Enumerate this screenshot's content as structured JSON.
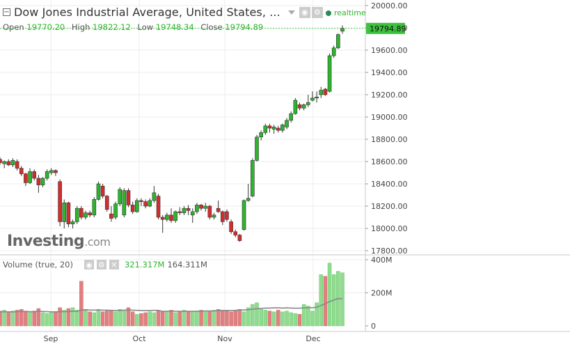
{
  "header": {
    "title": "Dow Jones Industrial Average, United States, ...",
    "collapse_icon": "minus-box-icon",
    "realtime_label": "realtime",
    "ohlc": {
      "open_label": "Open",
      "open": "19770.20",
      "high_label": "High",
      "high": "19822.12",
      "low_label": "Low",
      "low": "19748.34",
      "close_label": "Close",
      "close": "19794.89"
    }
  },
  "price_axis": {
    "current_price": "19794.89",
    "ticks": [
      "20000.00",
      "19800.00",
      "19600.00",
      "19400.00",
      "19200.00",
      "19000.00",
      "18800.00",
      "18600.00",
      "18400.00",
      "18200.00",
      "18000.00",
      "17800.00"
    ]
  },
  "volume_panel": {
    "title": "Volume (true, 20)",
    "value1": "321.317M",
    "value2": "164.311M",
    "ticks": [
      "400M",
      "200M",
      "0"
    ]
  },
  "time_axis": {
    "labels": [
      "Sep",
      "Oct",
      "Nov",
      "Dec"
    ]
  },
  "logo": {
    "brand": "Investing",
    "suffix": ".com"
  },
  "colors": {
    "up": "#2db52d",
    "down": "#d22e2e",
    "vol_up": "#8fdc8f",
    "vol_down": "#e08080",
    "grid": "#ececec",
    "ma": "#888888"
  },
  "chart_data": {
    "type": "candlestick",
    "title": "Dow Jones Industrial Average, United States",
    "price_range": [
      17800,
      20000
    ],
    "volume_range": [
      0,
      400
    ],
    "volume_unit": "M",
    "candles": [
      {
        "o": 18620,
        "h": 18640,
        "l": 18570,
        "c": 18590,
        "v": 90
      },
      {
        "o": 18580,
        "h": 18610,
        "l": 18540,
        "c": 18600,
        "v": 95
      },
      {
        "o": 18600,
        "h": 18620,
        "l": 18560,
        "c": 18570,
        "v": 85
      },
      {
        "o": 18570,
        "h": 18630,
        "l": 18550,
        "c": 18610,
        "v": 90
      },
      {
        "o": 18600,
        "h": 18620,
        "l": 18520,
        "c": 18540,
        "v": 95
      },
      {
        "o": 18540,
        "h": 18560,
        "l": 18470,
        "c": 18490,
        "v": 100
      },
      {
        "o": 18490,
        "h": 18500,
        "l": 18380,
        "c": 18410,
        "v": 90
      },
      {
        "o": 18410,
        "h": 18540,
        "l": 18400,
        "c": 18510,
        "v": 85
      },
      {
        "o": 18510,
        "h": 18530,
        "l": 18430,
        "c": 18450,
        "v": 90
      },
      {
        "o": 18450,
        "h": 18480,
        "l": 18320,
        "c": 18390,
        "v": 105
      },
      {
        "o": 18390,
        "h": 18460,
        "l": 18370,
        "c": 18450,
        "v": 80
      },
      {
        "o": 18450,
        "h": 18530,
        "l": 18430,
        "c": 18510,
        "v": 75
      },
      {
        "o": 18500,
        "h": 18540,
        "l": 18480,
        "c": 18520,
        "v": 80
      },
      {
        "o": 18520,
        "h": 18530,
        "l": 18470,
        "c": 18500,
        "v": 85
      },
      {
        "o": 18420,
        "h": 18440,
        "l": 18020,
        "c": 18060,
        "v": 110
      },
      {
        "o": 18060,
        "h": 18260,
        "l": 18000,
        "c": 18230,
        "v": 95
      },
      {
        "o": 18230,
        "h": 18240,
        "l": 18010,
        "c": 18040,
        "v": 105
      },
      {
        "o": 18040,
        "h": 18080,
        "l": 18000,
        "c": 18060,
        "v": 110
      },
      {
        "o": 18060,
        "h": 18200,
        "l": 18040,
        "c": 18180,
        "v": 95
      },
      {
        "o": 18180,
        "h": 18200,
        "l": 18080,
        "c": 18100,
        "v": 270
      },
      {
        "o": 18100,
        "h": 18160,
        "l": 18080,
        "c": 18140,
        "v": 100
      },
      {
        "o": 18140,
        "h": 18160,
        "l": 18100,
        "c": 18120,
        "v": 85
      },
      {
        "o": 18120,
        "h": 18280,
        "l": 18100,
        "c": 18260,
        "v": 80
      },
      {
        "o": 18260,
        "h": 18420,
        "l": 18250,
        "c": 18400,
        "v": 100
      },
      {
        "o": 18380,
        "h": 18400,
        "l": 18270,
        "c": 18290,
        "v": 85
      },
      {
        "o": 18290,
        "h": 18300,
        "l": 18150,
        "c": 18170,
        "v": 90
      },
      {
        "o": 18130,
        "h": 18200,
        "l": 18060,
        "c": 18090,
        "v": 95
      },
      {
        "o": 18100,
        "h": 18240,
        "l": 18080,
        "c": 18220,
        "v": 85
      },
      {
        "o": 18220,
        "h": 18370,
        "l": 18200,
        "c": 18350,
        "v": 100
      },
      {
        "o": 18120,
        "h": 18360,
        "l": 18100,
        "c": 18340,
        "v": 95
      },
      {
        "o": 18340,
        "h": 18360,
        "l": 18190,
        "c": 18210,
        "v": 110
      },
      {
        "o": 18210,
        "h": 18240,
        "l": 18130,
        "c": 18150,
        "v": 85
      },
      {
        "o": 18150,
        "h": 18270,
        "l": 18140,
        "c": 18250,
        "v": 70
      },
      {
        "o": 18250,
        "h": 18270,
        "l": 18200,
        "c": 18240,
        "v": 75
      },
      {
        "o": 18240,
        "h": 18260,
        "l": 18180,
        "c": 18200,
        "v": 80
      },
      {
        "o": 18200,
        "h": 18270,
        "l": 18190,
        "c": 18250,
        "v": 85
      },
      {
        "o": 18250,
        "h": 18380,
        "l": 18230,
        "c": 18320,
        "v": 80
      },
      {
        "o": 18290,
        "h": 18310,
        "l": 18080,
        "c": 18100,
        "v": 90
      },
      {
        "o": 18100,
        "h": 18120,
        "l": 17960,
        "c": 18080,
        "v": 85
      },
      {
        "o": 18080,
        "h": 18140,
        "l": 18060,
        "c": 18120,
        "v": 90
      },
      {
        "o": 18120,
        "h": 18180,
        "l": 18050,
        "c": 18070,
        "v": 95
      },
      {
        "o": 18070,
        "h": 18160,
        "l": 18050,
        "c": 18150,
        "v": 80
      },
      {
        "o": 18150,
        "h": 18190,
        "l": 18120,
        "c": 18140,
        "v": 85
      },
      {
        "o": 18140,
        "h": 18200,
        "l": 18120,
        "c": 18180,
        "v": 95
      },
      {
        "o": 18180,
        "h": 18210,
        "l": 18120,
        "c": 18160,
        "v": 90
      },
      {
        "o": 18120,
        "h": 18180,
        "l": 18050,
        "c": 18150,
        "v": 85
      },
      {
        "o": 18150,
        "h": 18230,
        "l": 18130,
        "c": 18210,
        "v": 90
      },
      {
        "o": 18210,
        "h": 18220,
        "l": 18160,
        "c": 18180,
        "v": 95
      },
      {
        "o": 18180,
        "h": 18230,
        "l": 18150,
        "c": 18200,
        "v": 90
      },
      {
        "o": 18200,
        "h": 18210,
        "l": 18080,
        "c": 18100,
        "v": 90
      },
      {
        "o": 18100,
        "h": 18140,
        "l": 18080,
        "c": 18120,
        "v": 95
      },
      {
        "o": 18180,
        "h": 18250,
        "l": 18140,
        "c": 18150,
        "v": 100
      },
      {
        "o": 18150,
        "h": 18160,
        "l": 18030,
        "c": 18060,
        "v": 95
      },
      {
        "o": 18150,
        "h": 18170,
        "l": 18060,
        "c": 18080,
        "v": 95
      },
      {
        "o": 18060,
        "h": 18080,
        "l": 17950,
        "c": 17970,
        "v": 85
      },
      {
        "o": 17970,
        "h": 17990,
        "l": 17920,
        "c": 17940,
        "v": 95
      },
      {
        "o": 17940,
        "h": 17950,
        "l": 17880,
        "c": 17890,
        "v": 100
      },
      {
        "o": 17990,
        "h": 18260,
        "l": 17980,
        "c": 18250,
        "v": 85
      },
      {
        "o": 18250,
        "h": 18400,
        "l": 18240,
        "c": 18270,
        "v": 110
      },
      {
        "o": 18290,
        "h": 18630,
        "l": 18280,
        "c": 18610,
        "v": 130
      },
      {
        "o": 18610,
        "h": 18840,
        "l": 18600,
        "c": 18820,
        "v": 140
      },
      {
        "o": 18820,
        "h": 18880,
        "l": 18790,
        "c": 18860,
        "v": 100
      },
      {
        "o": 18860,
        "h": 18940,
        "l": 18840,
        "c": 18920,
        "v": 95
      },
      {
        "o": 18920,
        "h": 18940,
        "l": 18860,
        "c": 18900,
        "v": 90
      },
      {
        "o": 18890,
        "h": 18930,
        "l": 18850,
        "c": 18910,
        "v": 85
      },
      {
        "o": 18900,
        "h": 18920,
        "l": 18860,
        "c": 18880,
        "v": 95
      },
      {
        "o": 18880,
        "h": 18940,
        "l": 18860,
        "c": 18930,
        "v": 85
      },
      {
        "o": 18910,
        "h": 18990,
        "l": 18890,
        "c": 18970,
        "v": 90
      },
      {
        "o": 18970,
        "h": 19050,
        "l": 18950,
        "c": 19030,
        "v": 80
      },
      {
        "o": 19030,
        "h": 19170,
        "l": 19020,
        "c": 19150,
        "v": 75
      },
      {
        "o": 19110,
        "h": 19130,
        "l": 19060,
        "c": 19080,
        "v": 70
      },
      {
        "o": 19080,
        "h": 19120,
        "l": 19060,
        "c": 19110,
        "v": 130
      },
      {
        "o": 19110,
        "h": 19200,
        "l": 19090,
        "c": 19130,
        "v": 120
      },
      {
        "o": 19150,
        "h": 19230,
        "l": 19140,
        "c": 19170,
        "v": 90
      },
      {
        "o": 19170,
        "h": 19230,
        "l": 19130,
        "c": 19180,
        "v": 140
      },
      {
        "o": 19200,
        "h": 19270,
        "l": 19170,
        "c": 19240,
        "v": 310
      },
      {
        "o": 19250,
        "h": 19260,
        "l": 19190,
        "c": 19200,
        "v": 300
      },
      {
        "o": 19230,
        "h": 19570,
        "l": 19220,
        "c": 19550,
        "v": 380
      },
      {
        "o": 19550,
        "h": 19640,
        "l": 19530,
        "c": 19620,
        "v": 310
      },
      {
        "o": 19620,
        "h": 19750,
        "l": 19610,
        "c": 19740,
        "v": 330
      },
      {
        "o": 19770,
        "h": 19822,
        "l": 19748,
        "c": 19795,
        "v": 321
      }
    ],
    "moving_average_20": [
      84,
      86,
      85,
      85,
      86,
      87,
      87,
      86,
      86,
      88,
      87,
      86,
      85,
      85,
      86,
      86,
      87,
      88,
      88,
      96,
      96,
      96,
      95,
      96,
      95,
      95,
      94,
      93,
      94,
      95,
      96,
      95,
      94,
      93,
      93,
      93,
      94,
      94,
      88,
      88,
      89,
      89,
      88,
      88,
      88,
      88,
      89,
      89,
      90,
      90,
      90,
      92,
      92,
      93,
      93,
      94,
      96,
      96,
      98,
      101,
      104,
      106,
      108,
      108,
      109,
      109,
      108,
      109,
      108,
      107,
      107,
      109,
      110,
      110,
      113,
      124,
      134,
      147,
      156,
      166,
      164
    ]
  }
}
